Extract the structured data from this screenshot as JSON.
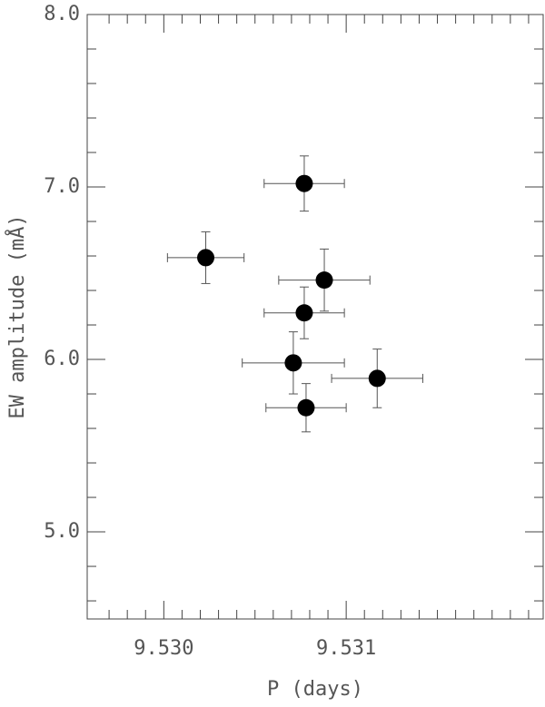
{
  "chart_data": {
    "type": "scatter",
    "x_label": "P (days)",
    "y_label": "EW amplitude (mÅ)",
    "x": [
      9.53023,
      9.53077,
      9.53088,
      9.53077,
      9.53071,
      9.53117,
      9.53078
    ],
    "values": [
      6.59,
      7.02,
      6.46,
      6.27,
      5.98,
      5.89,
      5.72
    ],
    "xerr": [
      0.00021,
      0.00022,
      0.00025,
      0.00022,
      0.00028,
      0.00025,
      0.00022
    ],
    "yerr": [
      0.15,
      0.16,
      0.18,
      0.15,
      0.18,
      0.17,
      0.14
    ],
    "color": "#000000",
    "xlim": [
      9.52958,
      9.53208
    ],
    "ylim": [
      4.495,
      8.0
    ],
    "xticks": [
      {
        "value": 9.53,
        "label": "9.530"
      },
      {
        "value": 9.531,
        "label": "9.531"
      }
    ],
    "yticks": [
      {
        "value": 5,
        "label": "5.0"
      },
      {
        "value": 6,
        "label": "6.0"
      },
      {
        "value": 7,
        "label": "7.0"
      },
      {
        "value": 8,
        "label": "8.0"
      }
    ],
    "xminorticks": [
      9.5297,
      9.5298,
      9.5299,
      9.5301,
      9.5302,
      9.5303,
      9.5304,
      9.5305,
      9.5306,
      9.5307,
      9.5308,
      9.5309,
      9.5311,
      9.5312,
      9.5313,
      9.5314,
      9.5315,
      9.5316,
      9.5317,
      9.5318,
      9.5319,
      9.532
    ],
    "yminorticks": [
      4.6,
      4.8,
      5.2,
      5.4,
      5.6,
      5.8,
      6.2,
      6.4,
      6.6,
      6.8,
      7.2,
      7.4,
      7.6,
      7.8
    ]
  }
}
